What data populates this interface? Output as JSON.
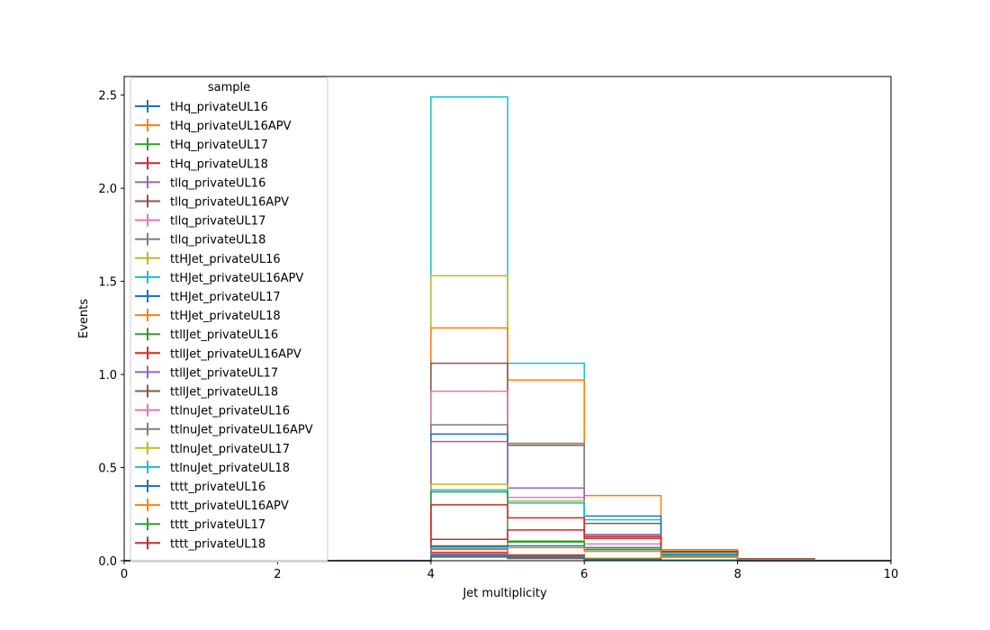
{
  "chart_data": {
    "type": "line",
    "style": "step-histogram",
    "title": "",
    "xlabel": "Jet multiplicity",
    "ylabel": "Events",
    "xlim": [
      0,
      10
    ],
    "ylim": [
      0,
      2.6
    ],
    "xticks": [
      "0",
      "2",
      "4",
      "6",
      "8",
      "10"
    ],
    "yticks": [
      "0.0",
      "0.5",
      "1.0",
      "1.5",
      "2.0",
      "2.5"
    ],
    "xticks_values": [
      0,
      2,
      4,
      6,
      8,
      10
    ],
    "yticks_values": [
      0,
      0.5,
      1.0,
      1.5,
      2.0,
      2.5
    ],
    "grid": false,
    "legend": {
      "title": "sample",
      "placement": "upper-left"
    },
    "bin_edges": [
      0,
      1,
      2,
      3,
      4,
      5,
      6,
      7,
      8,
      9,
      10
    ],
    "series": [
      {
        "name": "tHq_privateUL16",
        "color": "#1f77b4",
        "values": [
          0,
          0,
          0,
          0,
          0.02,
          0.02,
          0.006,
          0.002,
          0,
          0
        ]
      },
      {
        "name": "tHq_privateUL16APV",
        "color": "#ff7f0e",
        "values": [
          0,
          0,
          0,
          0,
          0.025,
          0.02,
          0.008,
          0.002,
          0,
          0
        ]
      },
      {
        "name": "tHq_privateUL17",
        "color": "#2ca02c",
        "values": [
          0,
          0,
          0,
          0,
          0.035,
          0.025,
          0.01,
          0.003,
          0,
          0
        ]
      },
      {
        "name": "tHq_privateUL18",
        "color": "#d62728",
        "values": [
          0,
          0,
          0,
          0,
          0.045,
          0.03,
          0.012,
          0.003,
          0,
          0
        ]
      },
      {
        "name": "tllq_privateUL16",
        "color": "#9467bd",
        "values": [
          0,
          0,
          0,
          0,
          0.03,
          0.015,
          0.005,
          0.001,
          0,
          0
        ]
      },
      {
        "name": "tllq_privateUL16APV",
        "color": "#8c564b",
        "values": [
          0,
          0,
          0,
          0,
          0.025,
          0.012,
          0.004,
          0.001,
          0,
          0
        ]
      },
      {
        "name": "tllq_privateUL17",
        "color": "#e377c2",
        "values": [
          0,
          0,
          0,
          0,
          0.04,
          0.02,
          0.006,
          0.001,
          0,
          0
        ]
      },
      {
        "name": "tllq_privateUL18",
        "color": "#7f7f7f",
        "values": [
          0,
          0,
          0,
          0,
          0.065,
          0.03,
          0.008,
          0.002,
          0,
          0
        ]
      },
      {
        "name": "ttHJet_privateUL16",
        "color": "#bcbd22",
        "values": [
          0,
          0,
          0,
          0,
          0.41,
          0.32,
          0.13,
          0.04,
          0.008,
          0
        ]
      },
      {
        "name": "ttHJet_privateUL16APV",
        "color": "#17becf",
        "values": [
          0,
          0,
          0,
          0,
          0.38,
          0.31,
          0.12,
          0.035,
          0.007,
          0
        ]
      },
      {
        "name": "ttHJet_privateUL17",
        "color": "#1f77b4",
        "values": [
          0,
          0,
          0,
          0,
          0.68,
          0.32,
          0.24,
          0.045,
          0.009,
          0
        ]
      },
      {
        "name": "ttHJet_privateUL18",
        "color": "#ff7f0e",
        "values": [
          0,
          0,
          0,
          0,
          1.25,
          0.97,
          0.35,
          0.06,
          0.01,
          0
        ]
      },
      {
        "name": "ttllJet_privateUL16",
        "color": "#2ca02c",
        "values": [
          0,
          0,
          0,
          0,
          0.37,
          0.1,
          0.07,
          0.02,
          0.004,
          0
        ]
      },
      {
        "name": "ttllJet_privateUL16APV",
        "color": "#d62728",
        "values": [
          0,
          0,
          0,
          0,
          0.3,
          0.23,
          0.12,
          0.03,
          0.005,
          0
        ]
      },
      {
        "name": "ttllJet_privateUL17",
        "color": "#9467bd",
        "values": [
          0,
          0,
          0,
          0,
          0.64,
          0.39,
          0.14,
          0.04,
          0.008,
          0
        ]
      },
      {
        "name": "ttllJet_privateUL18",
        "color": "#8c564b",
        "values": [
          0,
          0,
          0,
          0,
          1.06,
          0.62,
          0.2,
          0.05,
          0.01,
          0
        ]
      },
      {
        "name": "ttlnuJet_privateUL16",
        "color": "#e377c2",
        "values": [
          0,
          0,
          0,
          0,
          0.91,
          0.34,
          0.09,
          0.02,
          0.004,
          0
        ]
      },
      {
        "name": "ttlnuJet_privateUL16APV",
        "color": "#7f7f7f",
        "values": [
          0,
          0,
          0,
          0,
          0.73,
          0.63,
          0.14,
          0.03,
          0.006,
          0
        ]
      },
      {
        "name": "ttlnuJet_privateUL17",
        "color": "#bcbd22",
        "values": [
          0,
          0,
          0,
          0,
          1.53,
          0.63,
          0.13,
          0.04,
          0.007,
          0
        ]
      },
      {
        "name": "ttlnuJet_privateUL18",
        "color": "#17becf",
        "values": [
          0,
          0,
          0,
          0,
          2.49,
          1.06,
          0.22,
          0.05,
          0.01,
          0
        ]
      },
      {
        "name": "tttt_privateUL16",
        "color": "#1f77b4",
        "values": [
          0,
          0,
          0,
          0,
          0.075,
          0.08,
          0.06,
          0.03,
          0.005,
          0
        ]
      },
      {
        "name": "tttt_privateUL16APV",
        "color": "#ff7f0e",
        "values": [
          0,
          0,
          0,
          0,
          0.06,
          0.07,
          0.05,
          0.025,
          0.004,
          0
        ]
      },
      {
        "name": "tttt_privateUL17",
        "color": "#2ca02c",
        "values": [
          0,
          0,
          0,
          0,
          0.08,
          0.105,
          0.07,
          0.03,
          0.006,
          0
        ]
      },
      {
        "name": "tttt_privateUL18",
        "color": "#d62728",
        "values": [
          0,
          0,
          0,
          0,
          0.115,
          0.165,
          0.13,
          0.05,
          0.008,
          0
        ]
      }
    ]
  }
}
